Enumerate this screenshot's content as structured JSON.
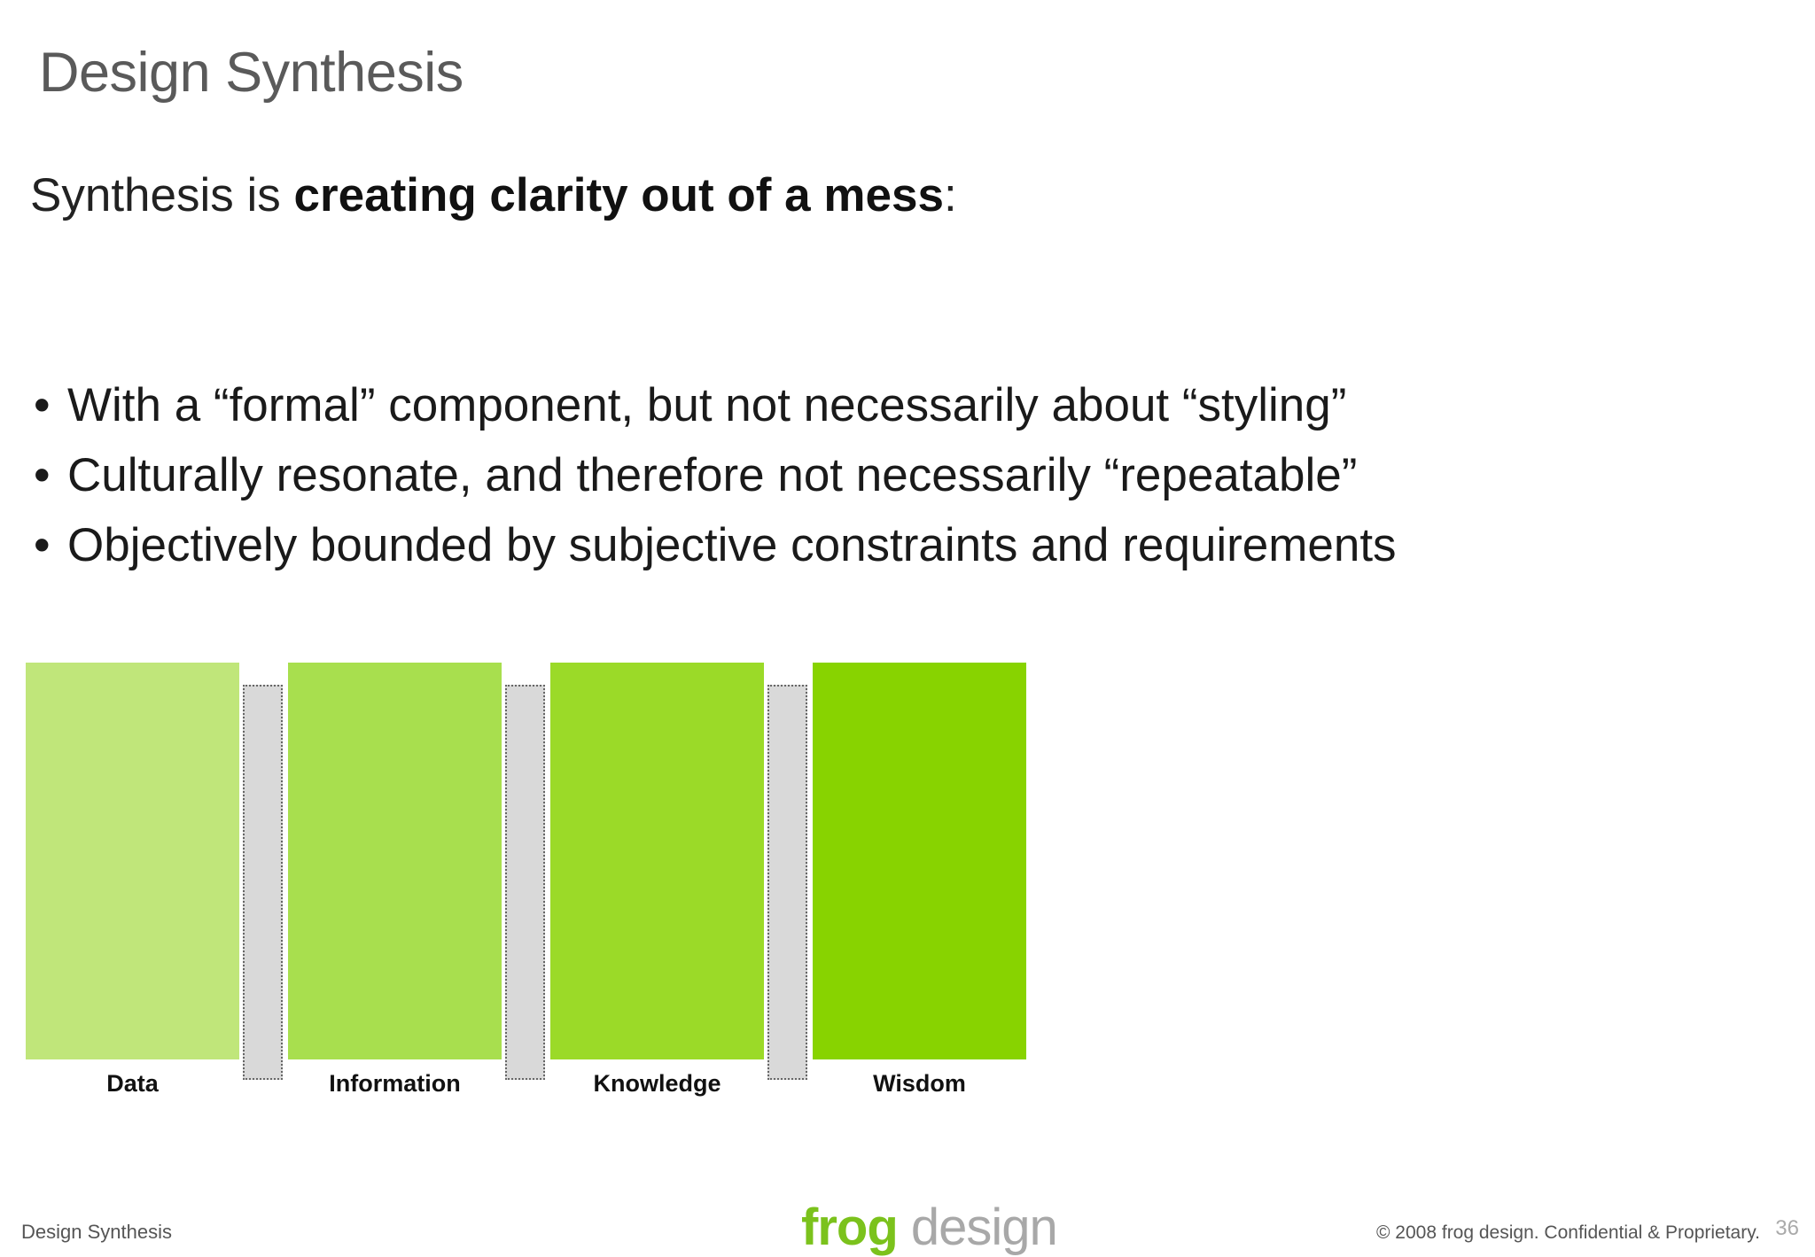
{
  "slide": {
    "title": "Design Synthesis",
    "lead_prefix": "Synthesis is ",
    "lead_bold": "creating clarity out of a mess",
    "lead_suffix": ":",
    "bullets": [
      "With a “formal” component, but not necessarily about “styling”",
      "Culturally resonate, and therefore not necessarily “repeatable”",
      "Objectively bounded by subjective constraints and requirements"
    ]
  },
  "diagram": {
    "blocks": [
      {
        "label": "Data",
        "color": "#c0e67a"
      },
      {
        "label": "Information",
        "color": "#a8df4e"
      },
      {
        "label": "Knowledge",
        "color": "#9bda28"
      },
      {
        "label": "Wisdom",
        "color": "#88d300"
      }
    ],
    "gap_color": "#d9d9d9"
  },
  "footer": {
    "left_text": "Design Synthesis",
    "logo_frog": "frog",
    "logo_design": " design",
    "copyright": "© 2008 frog design. Confidential & Proprietary.",
    "page_number": "36"
  }
}
